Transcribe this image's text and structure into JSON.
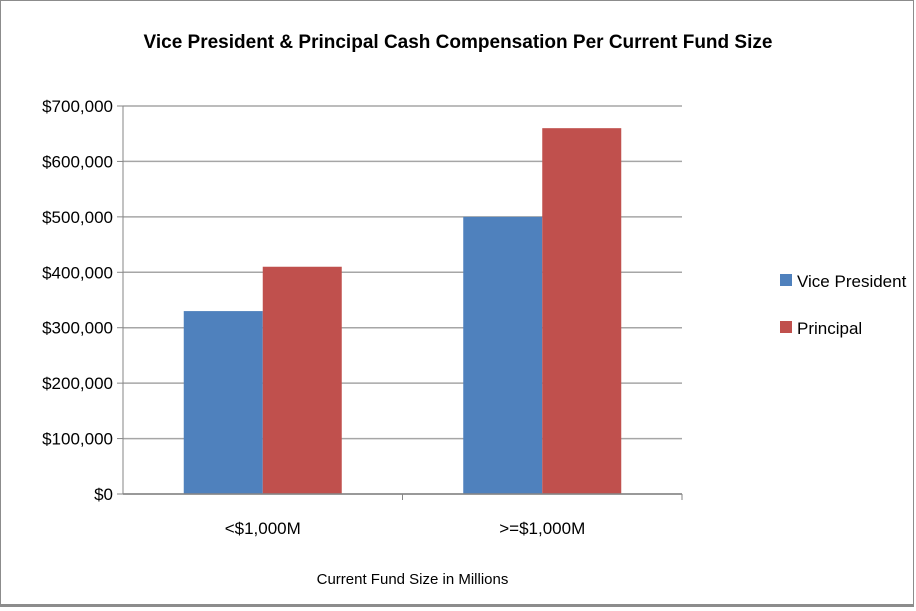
{
  "chart_data": {
    "type": "bar",
    "title": "Vice President & Principal Cash Compensation Per Current Fund Size",
    "xlabel": "Current Fund Size in Millions",
    "ylabel": "",
    "categories": [
      "<$1,000M",
      ">=$1,000M"
    ],
    "series": [
      {
        "name": "Vice President",
        "values": [
          330000,
          500000
        ],
        "color": "#4f81bd"
      },
      {
        "name": "Principal",
        "values": [
          410000,
          660000
        ],
        "color": "#c0504d"
      }
    ],
    "ylim": [
      0,
      700000
    ],
    "yticks": [
      0,
      100000,
      200000,
      300000,
      400000,
      500000,
      600000,
      700000
    ],
    "ytick_labels": [
      "$0",
      "$100,000",
      "$200,000",
      "$300,000",
      "$400,000",
      "$500,000",
      "$600,000",
      "$700,000"
    ],
    "grid": true,
    "legend_position": "right"
  }
}
